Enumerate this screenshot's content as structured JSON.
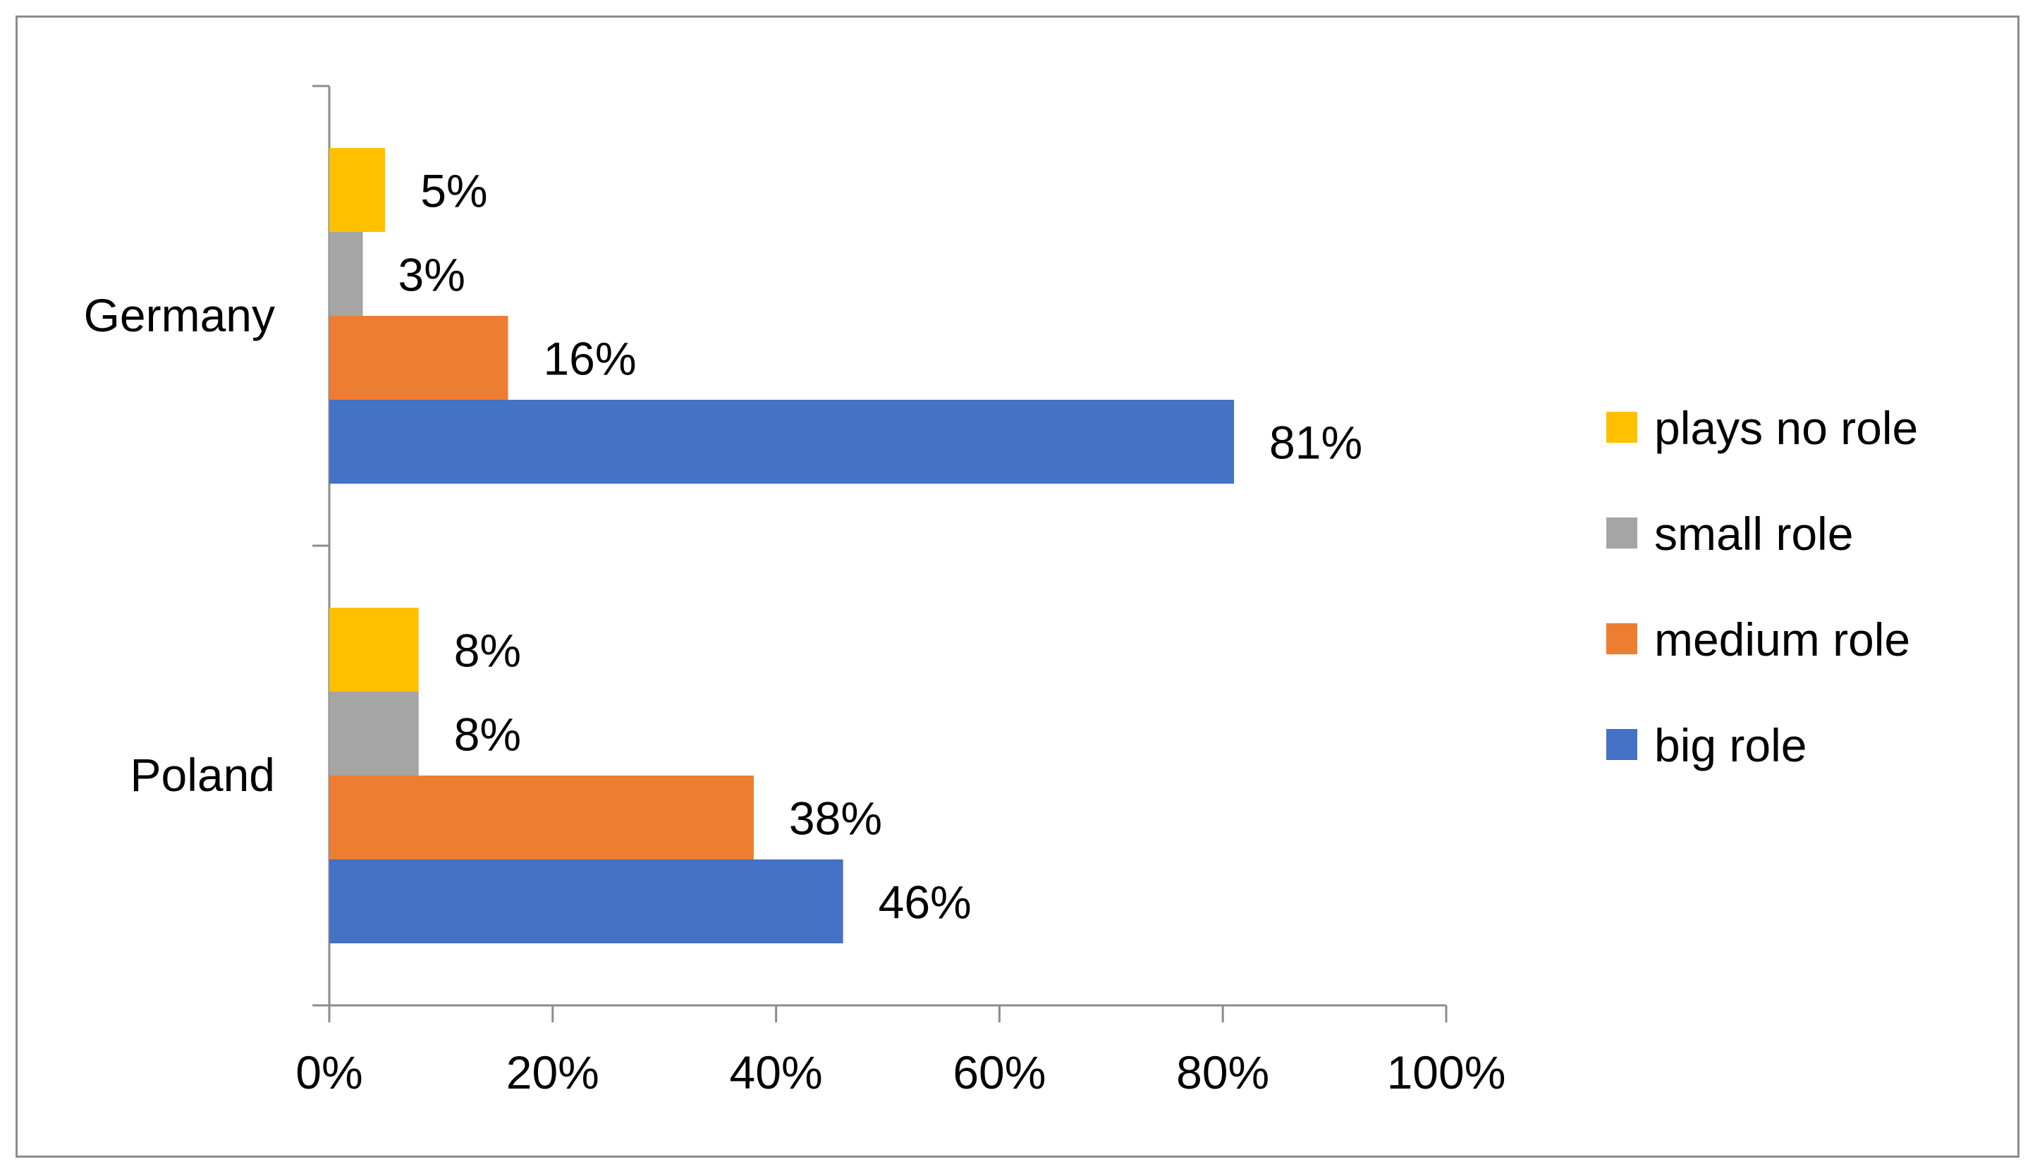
{
  "chart_data": {
    "type": "bar",
    "orientation": "horizontal",
    "title": "",
    "xlabel": "",
    "ylabel": "",
    "categories": [
      "Germany",
      "Poland"
    ],
    "series": [
      {
        "name": "plays no role",
        "color": "#FFC000",
        "values": [
          5,
          8
        ],
        "labels": [
          "5%",
          "8%"
        ]
      },
      {
        "name": "small role",
        "color": "#A5A5A5",
        "values": [
          3,
          8
        ],
        "labels": [
          "3%",
          "8%"
        ]
      },
      {
        "name": "medium role",
        "color": "#ED7D31",
        "values": [
          16,
          38
        ],
        "labels": [
          "16%",
          "38%"
        ]
      },
      {
        "name": "big role",
        "color": "#4472C4",
        "values": [
          81,
          46
        ],
        "labels": [
          "81%",
          "46%"
        ]
      }
    ],
    "xlim": [
      0,
      100
    ],
    "xticks": [
      0,
      20,
      40,
      60,
      80,
      100
    ],
    "xtick_labels": [
      "0%",
      "20%",
      "40%",
      "60%",
      "80%",
      "100%"
    ],
    "grid": false,
    "legend_position": "right"
  }
}
